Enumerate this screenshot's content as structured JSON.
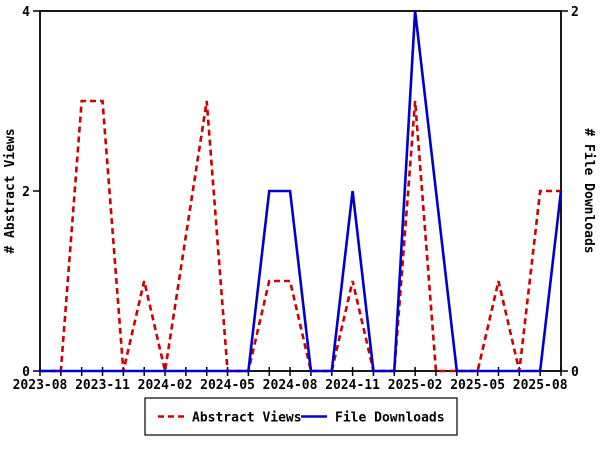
{
  "chart_data": {
    "type": "line",
    "title": "",
    "x_categories": [
      "2023-08",
      "2023-09",
      "2023-10",
      "2023-11",
      "2023-12",
      "2024-01",
      "2024-02",
      "2024-03",
      "2024-04",
      "2024-05",
      "2024-06",
      "2024-07",
      "2024-08",
      "2024-09",
      "2024-10",
      "2024-11",
      "2024-12",
      "2025-01",
      "2025-02",
      "2025-03",
      "2025-04",
      "2025-05",
      "2025-06",
      "2025-07",
      "2025-08",
      "2025-09"
    ],
    "x_tick_labels": [
      "2023-08",
      "2023-11",
      "2024-02",
      "2024-05",
      "2024-08",
      "2024-11",
      "2025-02",
      "2025-05",
      "2025-08"
    ],
    "x_tick_label_every": 3,
    "left_axis": {
      "label": "# Abstract Views",
      "range": [
        0,
        4
      ],
      "ticks": [
        0,
        2,
        4
      ]
    },
    "right_axis": {
      "label": "# File Downloads",
      "range": [
        0,
        2
      ],
      "ticks": [
        0,
        2
      ]
    },
    "series": [
      {
        "name": "Abstract Views",
        "axis": "left",
        "color": "#cc0000",
        "style": "dashed",
        "values": [
          0,
          0,
          3,
          3,
          0,
          1,
          0,
          null,
          3,
          0,
          0,
          1,
          1,
          0,
          0,
          1,
          0,
          0,
          3,
          0,
          0,
          0,
          1,
          0,
          2,
          2
        ]
      },
      {
        "name": "File Downloads",
        "axis": "right",
        "color": "#0000cc",
        "style": "solid",
        "values": [
          0,
          0,
          0,
          0,
          0,
          0,
          0,
          null,
          0,
          0,
          0,
          1,
          1,
          0,
          0,
          1,
          0,
          0,
          2,
          1,
          0,
          0,
          0,
          0,
          0,
          1
        ]
      }
    ],
    "legend": {
      "position": "bottom-center",
      "border": true,
      "entries": [
        "Abstract Views",
        "File Downloads"
      ]
    },
    "background": "#ffffff",
    "axis_color": "#000000",
    "grid": false
  }
}
